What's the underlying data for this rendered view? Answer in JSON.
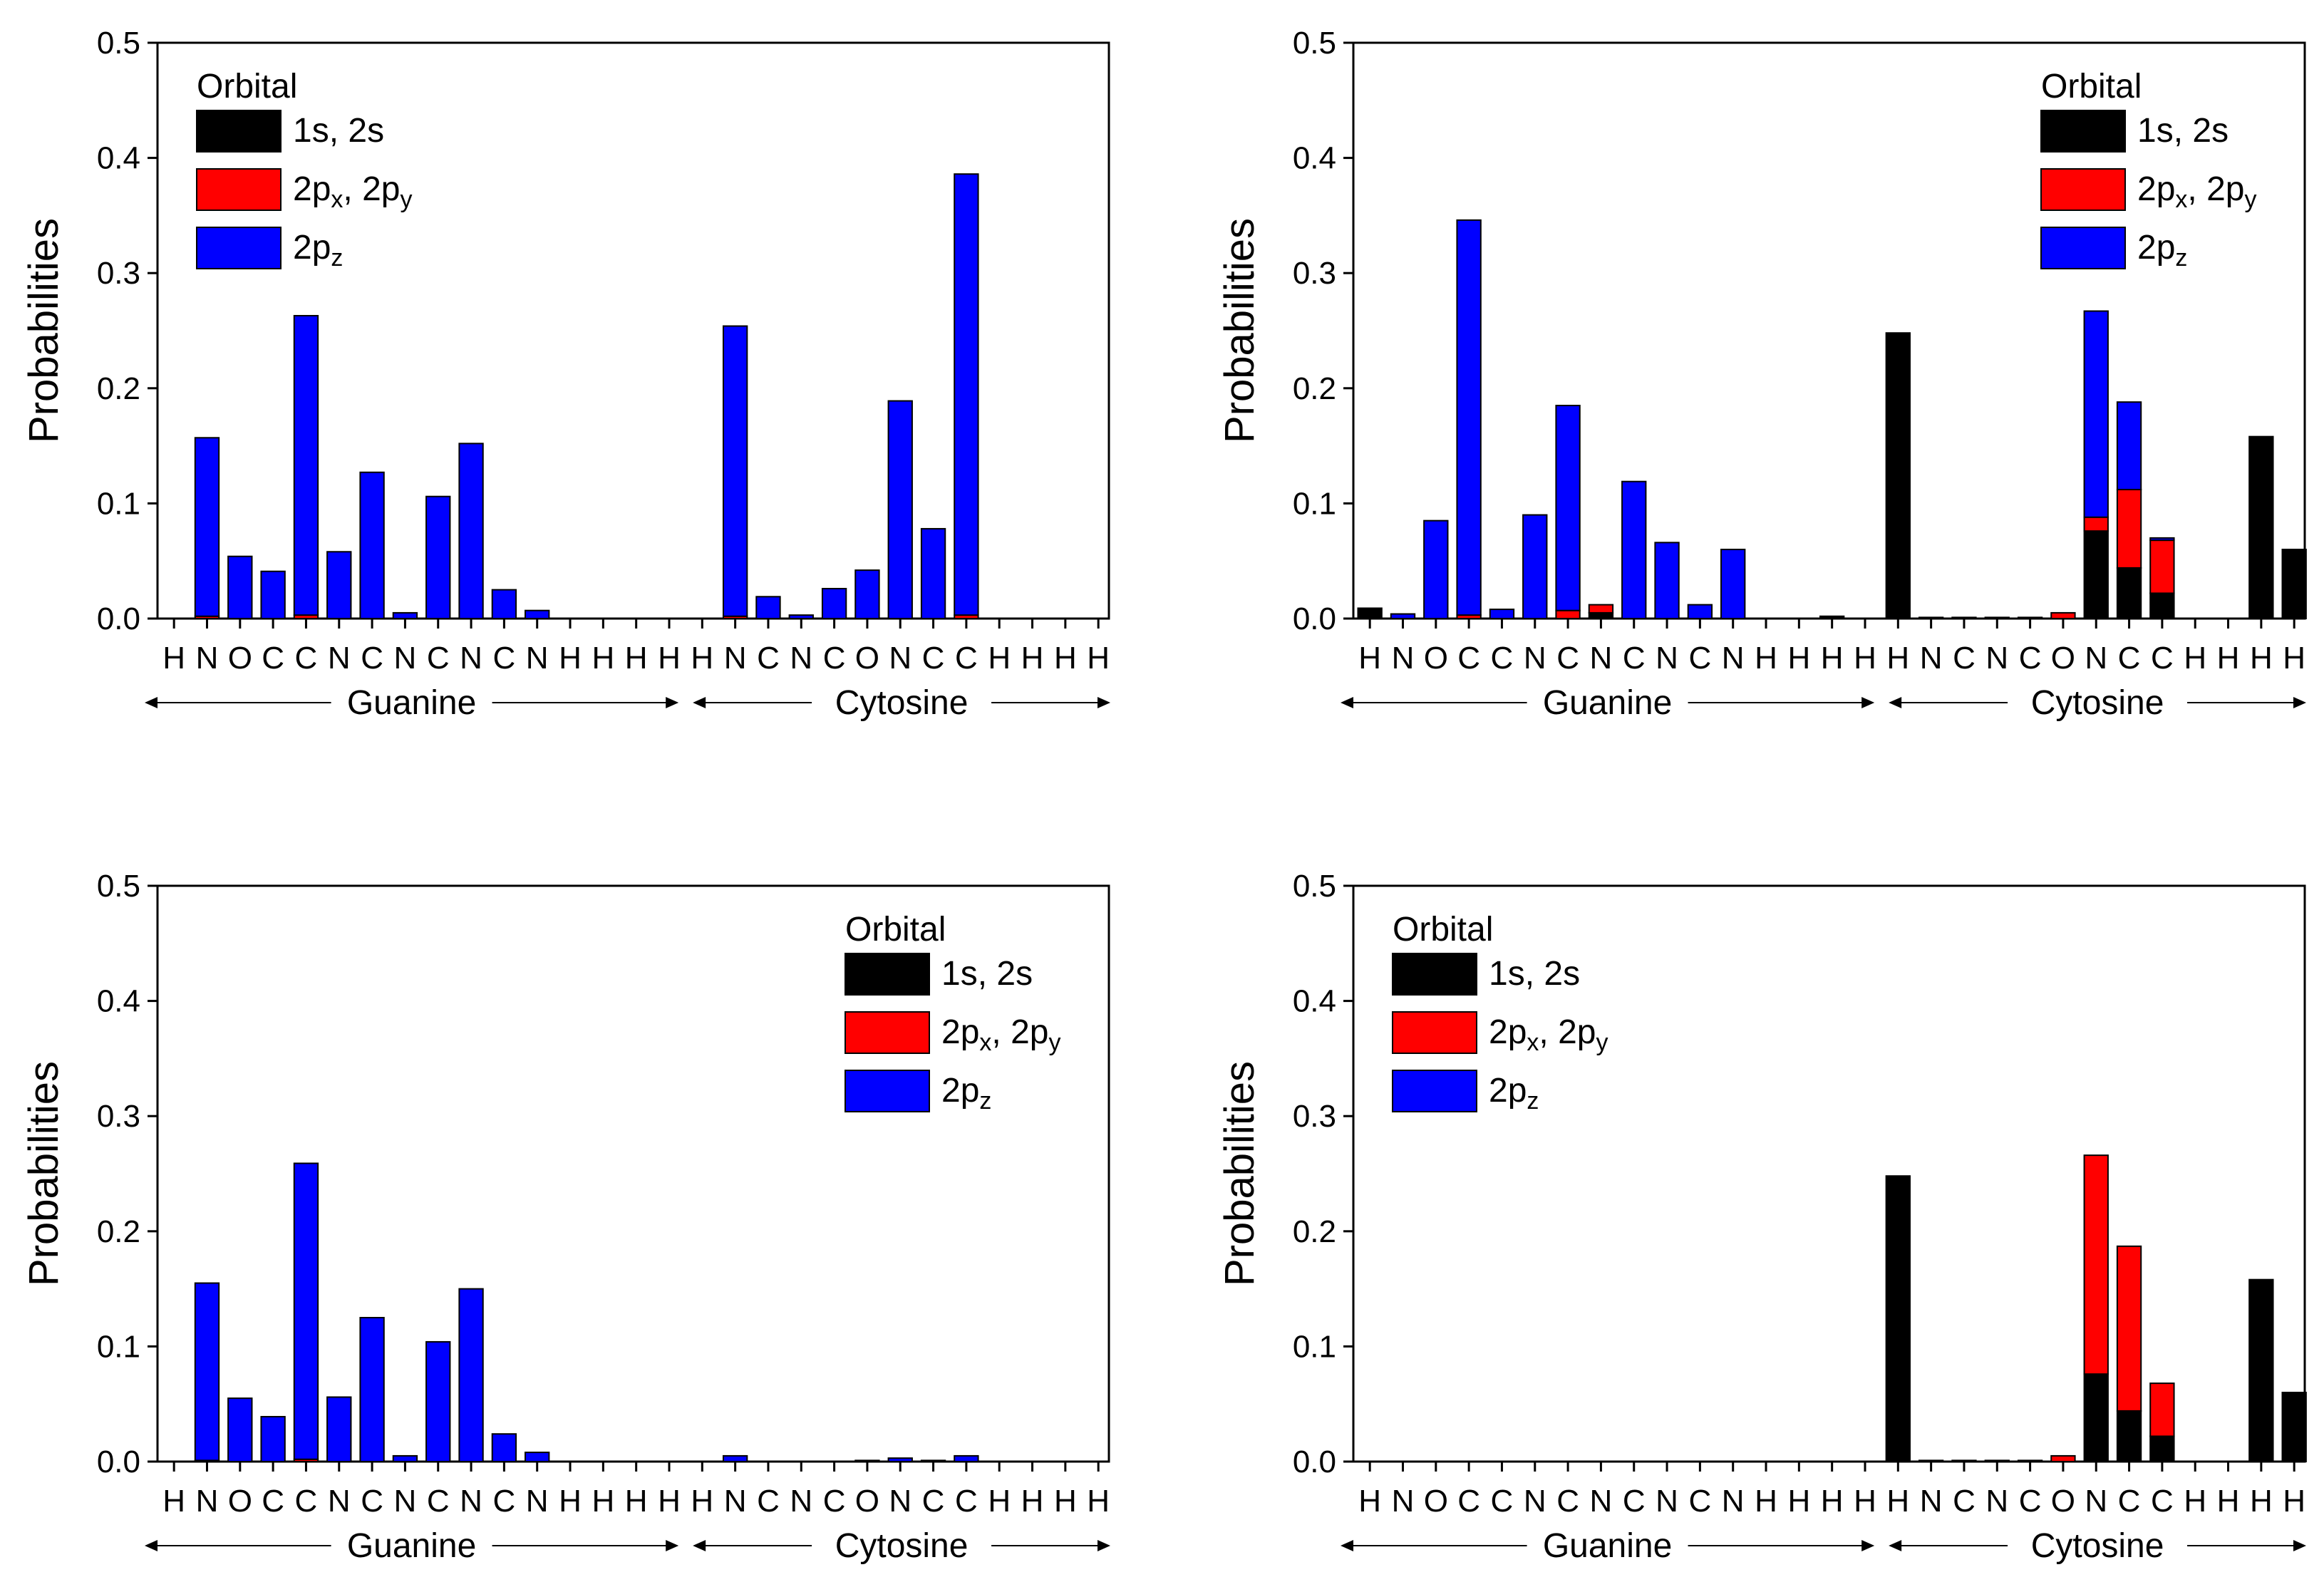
{
  "colors": {
    "s": "#000000",
    "pxy": "#ff0000",
    "pz": "#0000ff"
  },
  "charts": [
    {
      "type": "bar",
      "stacked": true,
      "ylabel": "Probabilities",
      "ylim": [
        0,
        0.5
      ],
      "yticks": [
        "0.0",
        "0.1",
        "0.2",
        "0.3",
        "0.4",
        "0.5"
      ],
      "legend": {
        "title": "Orbital",
        "position": "top-left",
        "entries": [
          {
            "key": "s",
            "label": "1s, 2s"
          },
          {
            "key": "pxy",
            "label": "2px, 2py",
            "main1": "2p",
            "sub1": "x",
            "sep": ", ",
            "main2": "2p",
            "sub2": "y"
          },
          {
            "key": "pz",
            "label": "2pz",
            "main1": "2p",
            "sub1": "z"
          }
        ]
      },
      "groups": [
        {
          "label": "Guanine"
        },
        {
          "label": "Cytosine"
        }
      ],
      "categories": [
        "H",
        "N",
        "O",
        "C",
        "C",
        "N",
        "C",
        "N",
        "C",
        "N",
        "C",
        "N",
        "H",
        "H",
        "H",
        "H",
        "H",
        "N",
        "C",
        "N",
        "C",
        "O",
        "N",
        "C",
        "C",
        "H",
        "H",
        "H",
        "H"
      ],
      "series": [
        {
          "key": "s",
          "name": "1s, 2s",
          "values": [
            0,
            0,
            0,
            0,
            0,
            0,
            0,
            0,
            0,
            0,
            0,
            0,
            0,
            0,
            0,
            0,
            0,
            0,
            0,
            0,
            0,
            0,
            0,
            0,
            0,
            0,
            0,
            0,
            0
          ]
        },
        {
          "key": "pxy",
          "name": "2px, 2py",
          "values": [
            0,
            0.002,
            0,
            0,
            0.003,
            0,
            0,
            0,
            0,
            0,
            0,
            0,
            0,
            0,
            0,
            0,
            0,
            0.002,
            0,
            0,
            0,
            0,
            0,
            0,
            0.003,
            0,
            0,
            0,
            0
          ]
        },
        {
          "key": "pz",
          "name": "2pz",
          "values": [
            0,
            0.155,
            0.054,
            0.041,
            0.26,
            0.058,
            0.127,
            0.005,
            0.106,
            0.152,
            0.025,
            0.007,
            0,
            0,
            0,
            0,
            0,
            0.252,
            0.019,
            0.003,
            0.026,
            0.042,
            0.189,
            0.078,
            0.383,
            0,
            0,
            0,
            0
          ]
        }
      ]
    },
    {
      "type": "bar",
      "stacked": true,
      "ylabel": "Probabilities",
      "ylim": [
        0,
        0.5
      ],
      "yticks": [
        "0.0",
        "0.1",
        "0.2",
        "0.3",
        "0.4",
        "0.5"
      ],
      "legend": {
        "title": "Orbital",
        "position": "top-right",
        "entries": [
          {
            "key": "s",
            "label": "1s, 2s"
          },
          {
            "key": "pxy",
            "label": "2px, 2py",
            "main1": "2p",
            "sub1": "x",
            "sep": ", ",
            "main2": "2p",
            "sub2": "y"
          },
          {
            "key": "pz",
            "label": "2pz",
            "main1": "2p",
            "sub1": "z"
          }
        ]
      },
      "groups": [
        {
          "label": "Guanine"
        },
        {
          "label": "Cytosine"
        }
      ],
      "categories": [
        "H",
        "N",
        "O",
        "C",
        "C",
        "N",
        "C",
        "N",
        "C",
        "N",
        "C",
        "N",
        "H",
        "H",
        "H",
        "H",
        "H",
        "N",
        "C",
        "N",
        "C",
        "O",
        "N",
        "C",
        "C",
        "H",
        "H",
        "H",
        "H"
      ],
      "series": [
        {
          "key": "s",
          "name": "1s, 2s",
          "values": [
            0.009,
            0,
            0,
            0,
            0,
            0,
            0,
            0.005,
            0,
            0,
            0,
            0,
            0,
            0,
            0.002,
            0,
            0.248,
            0.001,
            0.001,
            0.001,
            0.001,
            0,
            0.076,
            0.044,
            0.022,
            0,
            0,
            0.158,
            0.06
          ]
        },
        {
          "key": "pxy",
          "name": "2px, 2py",
          "values": [
            0,
            0,
            0,
            0.003,
            0,
            0,
            0.007,
            0.007,
            0,
            0,
            0,
            0,
            0,
            0,
            0,
            0,
            0,
            0,
            0,
            0,
            0,
            0.005,
            0.012,
            0.068,
            0.046,
            0,
            0,
            0,
            0
          ]
        },
        {
          "key": "pz",
          "name": "2pz",
          "values": [
            0,
            0.004,
            0.085,
            0.343,
            0.008,
            0.09,
            0.178,
            0,
            0.119,
            0.066,
            0.012,
            0.06,
            0,
            0,
            0,
            0,
            0,
            0,
            0,
            0,
            0,
            0,
            0.179,
            0.076,
            0.002,
            0,
            0,
            0,
            0
          ]
        }
      ]
    },
    {
      "type": "bar",
      "stacked": true,
      "ylabel": "Probabilities",
      "ylim": [
        0,
        0.5
      ],
      "yticks": [
        "0.0",
        "0.1",
        "0.2",
        "0.3",
        "0.4",
        "0.5"
      ],
      "legend": {
        "title": "Orbital",
        "position": "top-right",
        "entries": [
          {
            "key": "s",
            "label": "1s, 2s"
          },
          {
            "key": "pxy",
            "label": "2px, 2py",
            "main1": "2p",
            "sub1": "x",
            "sep": ", ",
            "main2": "2p",
            "sub2": "y"
          },
          {
            "key": "pz",
            "label": "2pz",
            "main1": "2p",
            "sub1": "z"
          }
        ]
      },
      "groups": [
        {
          "label": "Guanine"
        },
        {
          "label": "Cytosine"
        }
      ],
      "categories": [
        "H",
        "N",
        "O",
        "C",
        "C",
        "N",
        "C",
        "N",
        "C",
        "N",
        "C",
        "N",
        "H",
        "H",
        "H",
        "H",
        "H",
        "N",
        "C",
        "N",
        "C",
        "O",
        "N",
        "C",
        "C",
        "H",
        "H",
        "H",
        "H"
      ],
      "series": [
        {
          "key": "s",
          "name": "1s, 2s",
          "values": [
            0,
            0,
            0,
            0,
            0,
            0,
            0,
            0,
            0,
            0,
            0,
            0,
            0,
            0,
            0,
            0,
            0,
            0,
            0,
            0,
            0,
            0,
            0,
            0,
            0,
            0,
            0,
            0,
            0
          ]
        },
        {
          "key": "pxy",
          "name": "2px, 2py",
          "values": [
            0,
            0.001,
            0,
            0,
            0.002,
            0,
            0,
            0,
            0,
            0,
            0,
            0,
            0,
            0,
            0,
            0,
            0,
            0,
            0,
            0,
            0,
            0,
            0,
            0,
            0,
            0,
            0,
            0,
            0
          ]
        },
        {
          "key": "pz",
          "name": "2pz",
          "values": [
            0,
            0.154,
            0.055,
            0.039,
            0.257,
            0.056,
            0.125,
            0.005,
            0.104,
            0.15,
            0.024,
            0.008,
            0,
            0,
            0,
            0,
            0,
            0.005,
            0,
            0,
            0,
            0.001,
            0.003,
            0.001,
            0.005,
            0,
            0,
            0,
            0
          ]
        }
      ]
    },
    {
      "type": "bar",
      "stacked": true,
      "ylabel": "Probabilities",
      "ylim": [
        0,
        0.5
      ],
      "yticks": [
        "0.0",
        "0.1",
        "0.2",
        "0.3",
        "0.4",
        "0.5"
      ],
      "legend": {
        "title": "Orbital",
        "position": "top-left",
        "entries": [
          {
            "key": "s",
            "label": "1s, 2s"
          },
          {
            "key": "pxy",
            "label": "2px, 2py",
            "main1": "2p",
            "sub1": "x",
            "sep": ", ",
            "main2": "2p",
            "sub2": "y"
          },
          {
            "key": "pz",
            "label": "2pz",
            "main1": "2p",
            "sub1": "z"
          }
        ]
      },
      "groups": [
        {
          "label": "Guanine"
        },
        {
          "label": "Cytosine"
        }
      ],
      "categories": [
        "H",
        "N",
        "O",
        "C",
        "C",
        "N",
        "C",
        "N",
        "C",
        "N",
        "C",
        "N",
        "H",
        "H",
        "H",
        "H",
        "H",
        "N",
        "C",
        "N",
        "C",
        "O",
        "N",
        "C",
        "C",
        "H",
        "H",
        "H",
        "H"
      ],
      "series": [
        {
          "key": "s",
          "name": "1s, 2s",
          "values": [
            0,
            0,
            0,
            0,
            0,
            0,
            0,
            0,
            0,
            0,
            0,
            0,
            0,
            0,
            0,
            0,
            0.248,
            0.001,
            0.001,
            0.001,
            0.001,
            0,
            0.076,
            0.044,
            0.022,
            0,
            0,
            0.158,
            0.06
          ]
        },
        {
          "key": "pxy",
          "name": "2px, 2py",
          "values": [
            0,
            0,
            0,
            0,
            0,
            0,
            0,
            0,
            0,
            0,
            0,
            0,
            0,
            0,
            0,
            0,
            0,
            0,
            0,
            0,
            0,
            0.005,
            0.19,
            0.143,
            0.046,
            0,
            0,
            0,
            0
          ]
        },
        {
          "key": "pz",
          "name": "2pz",
          "values": [
            0,
            0,
            0,
            0,
            0,
            0,
            0,
            0,
            0,
            0,
            0,
            0,
            0,
            0,
            0,
            0,
            0,
            0,
            0,
            0,
            0,
            0,
            0,
            0,
            0,
            0,
            0,
            0,
            0
          ]
        }
      ]
    }
  ]
}
